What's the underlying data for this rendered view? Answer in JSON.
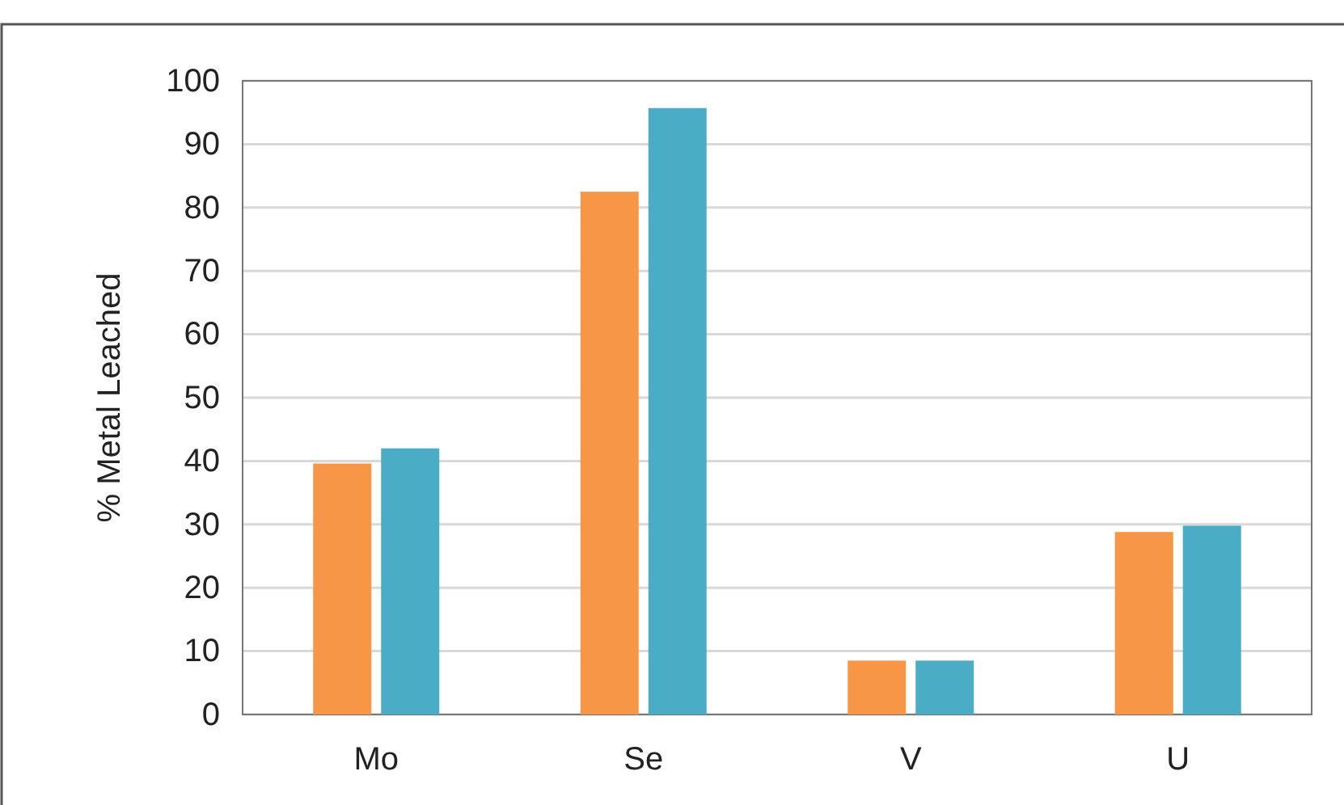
{
  "chart_data": {
    "type": "bar",
    "ylabel": "% Metal Leached",
    "categories": [
      "Mo",
      "Se",
      "V",
      "U"
    ],
    "series": [
      {
        "color": "#f79646",
        "values": [
          39.6,
          82.5,
          8.5,
          28.8
        ]
      },
      {
        "color": "#4bacc6",
        "values": [
          42,
          95.7,
          8.5,
          29.8
        ]
      }
    ],
    "ylim": [
      0,
      100
    ],
    "yticks": [
      0,
      10,
      20,
      30,
      40,
      50,
      60,
      70,
      80,
      90,
      100
    ],
    "grid": "y"
  }
}
